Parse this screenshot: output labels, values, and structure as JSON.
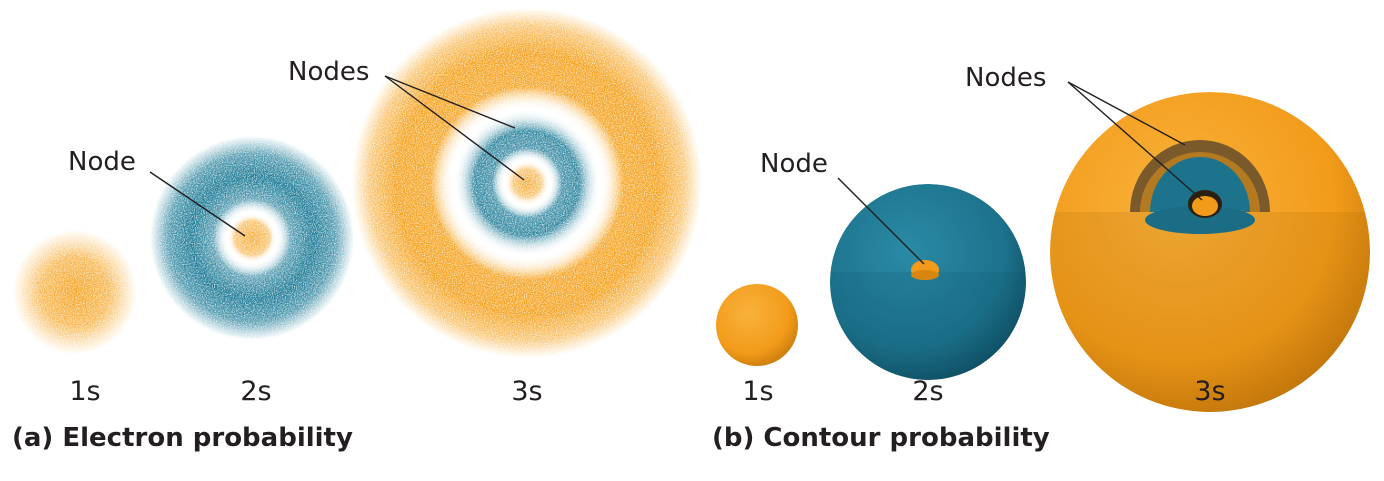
{
  "panel_a": {
    "title": "(a) Electron probability",
    "node_label": "Node",
    "nodes_label": "Nodes",
    "orbitals": [
      "1s",
      "2s",
      "3s"
    ]
  },
  "panel_b": {
    "title": "(b) Contour probability",
    "node_label": "Node",
    "nodes_label": "Nodes",
    "orbitals": [
      "1s",
      "2s",
      "3s"
    ]
  }
}
